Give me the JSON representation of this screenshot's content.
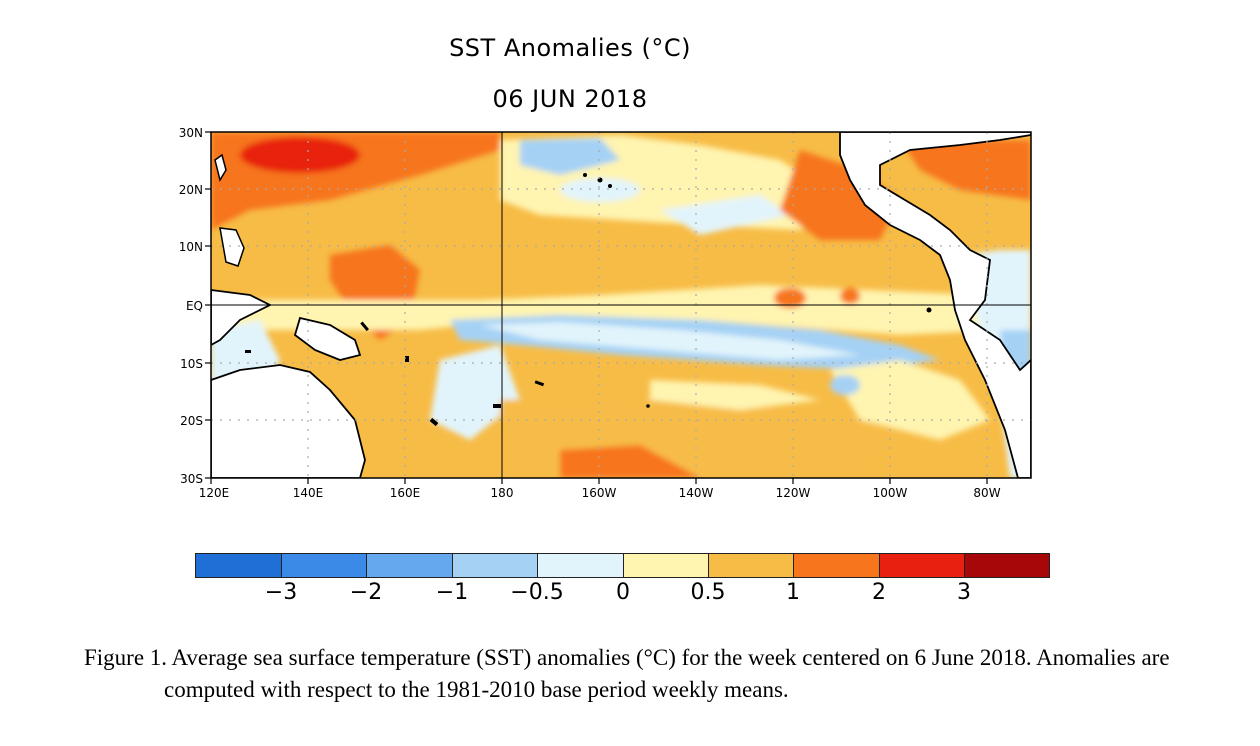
{
  "title": "SST Anomalies (°C)",
  "subtitle": "06 JUN 2018",
  "map": {
    "lat_ticks": [
      "30N",
      "20N",
      "10N",
      "EQ",
      "10S",
      "20S",
      "30S"
    ],
    "lon_ticks": [
      "120E",
      "140E",
      "160E",
      "180",
      "160W",
      "140W",
      "120W",
      "100W",
      "80W"
    ],
    "lat_range": [
      -30,
      30
    ],
    "lon_range": [
      120,
      290
    ],
    "grid": "dotted at 20° longitude and 10° latitude; solid lines at equator and 180"
  },
  "colorbar": {
    "colors": [
      "#1f6fd6",
      "#3c8ae8",
      "#66a8ee",
      "#a5d1f5",
      "#e2f4fb",
      "#fff4b0",
      "#f7bc46",
      "#f7751c",
      "#e8200f",
      "#a8070a"
    ],
    "labels": [
      "−3",
      "−2",
      "−1",
      "−0.5",
      "0",
      "0.5",
      "1",
      "2",
      "3"
    ]
  },
  "caption": "Figure 1. Average sea surface temperature (SST) anomalies (°C) for the week centered on 6 June 2018.  Anomalies are computed with respect to the 1981-2010 base period weekly means.",
  "chart_data": {
    "type": "heatmap",
    "title": "SST Anomalies (°C)",
    "subtitle": "06 JUN 2018",
    "x_ticks": [
      "120E",
      "140E",
      "160E",
      "180",
      "160W",
      "140W",
      "120W",
      "100W",
      "80W"
    ],
    "y_ticks": [
      "30N",
      "20N",
      "10N",
      "EQ",
      "10S",
      "20S",
      "30S"
    ],
    "colorbar_levels": [
      -3,
      -2,
      -1,
      -0.5,
      0,
      0.5,
      1,
      2,
      3
    ]
  }
}
